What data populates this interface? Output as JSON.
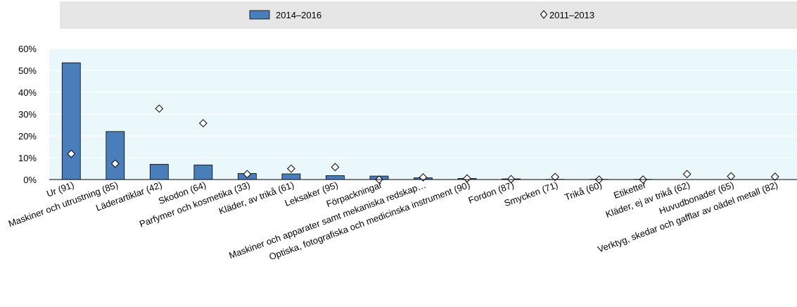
{
  "chart_data": {
    "type": "bar",
    "categories": [
      "Ur (91)",
      "Maskiner och utrustning (85)",
      "Läderartiklar (42)",
      "Skodon (64)",
      "Parfymer och kosmetika (33)",
      "Kläder, av trikå (61)",
      "Leksaker (95)",
      "Förpackningar",
      "Maskiner och apparater samt mekaniska redskap…",
      "Optiska, fotografiska och medicinska instrument (90)",
      "Fordon (87)",
      "Smycken (71)",
      "Trikå (60)",
      "Etiketter",
      "Kläder, ej av trikå (62)",
      "Huvudbonader (65)",
      "Verktyg, skedar och gafflar av oädel metall (82)"
    ],
    "series": [
      {
        "name": "2014–2016",
        "type": "bar",
        "color": "#4a7ebb",
        "values": [
          53.5,
          22.0,
          7.0,
          6.7,
          2.8,
          2.6,
          1.8,
          1.6,
          0.8,
          0.5,
          0.3,
          0.1,
          0.1,
          0.1,
          0.0,
          0.0,
          0.0
        ]
      },
      {
        "name": "2011–2013",
        "type": "marker",
        "marker": "diamond-open",
        "values": [
          11.8,
          7.3,
          32.5,
          25.8,
          2.5,
          5.0,
          5.7,
          0.0,
          1.0,
          0.5,
          0.2,
          1.2,
          0.0,
          0.0,
          2.5,
          1.5,
          1.3
        ]
      }
    ],
    "y_ticks": [
      "0%",
      "10%",
      "20%",
      "30%",
      "40%",
      "50%",
      "60%"
    ],
    "ylim": [
      0,
      60
    ],
    "grid": true,
    "legend_position": "top",
    "plot_background": "#eaf8fb",
    "legend_background": "#e6e6e6"
  }
}
